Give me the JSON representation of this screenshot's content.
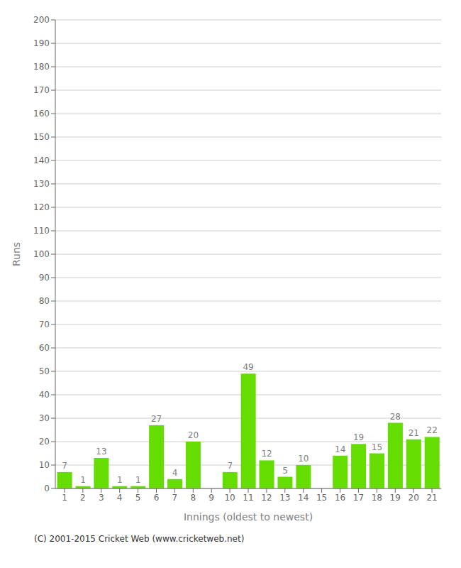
{
  "chart_data": {
    "type": "bar",
    "x_label": "Innings (oldest to newest)",
    "y_label": "Runs",
    "categories": [
      "1",
      "2",
      "3",
      "4",
      "5",
      "6",
      "7",
      "8",
      "9",
      "10",
      "11",
      "12",
      "13",
      "14",
      "15",
      "16",
      "17",
      "18",
      "19",
      "20",
      "21"
    ],
    "values": [
      7,
      1,
      13,
      1,
      1,
      27,
      4,
      20,
      0,
      7,
      49,
      12,
      5,
      10,
      0,
      14,
      19,
      15,
      28,
      21,
      22
    ],
    "color": "#66dd00",
    "ylim": [
      0,
      200
    ],
    "yticks": [
      0,
      10,
      20,
      30,
      40,
      50,
      60,
      70,
      80,
      90,
      100,
      110,
      120,
      130,
      140,
      150,
      160,
      170,
      180,
      190,
      200
    ],
    "grid": true,
    "data_labels": true,
    "annotations": [
      "(C) 2001-2015 Cricket Web (www.cricketweb.net)"
    ]
  }
}
